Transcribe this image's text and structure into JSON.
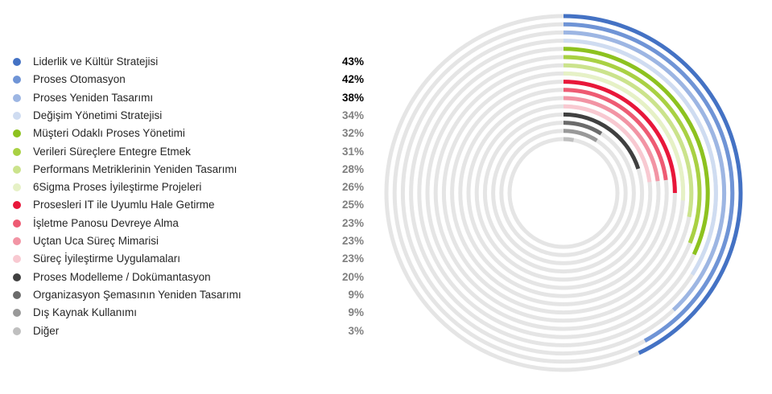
{
  "chart_data": {
    "type": "radial-bar",
    "max_value": 100,
    "track_color": "#e5e5e5",
    "series": [
      {
        "name": "Liderlik ve Kültür Stratejisi",
        "value": 43,
        "label": "43%",
        "color": "#4472c4",
        "label_color": "#000000"
      },
      {
        "name": "Proses Otomasyon",
        "value": 42,
        "label": "42%",
        "color": "#6f94d6",
        "label_color": "#000000"
      },
      {
        "name": "Proses Yeniden Tasarımı",
        "value": 38,
        "label": "38%",
        "color": "#9db6e3",
        "label_color": "#000000"
      },
      {
        "name": "Değişim Yönetimi Stratejisi",
        "value": 34,
        "label": "34%",
        "color": "#cfdcf1",
        "label_color": "#808080"
      },
      {
        "name": "Müşteri Odaklı Proses Yönetimi",
        "value": 32,
        "label": "32%",
        "color": "#8dc21f",
        "label_color": "#808080"
      },
      {
        "name": "Verileri Süreçlere Entegre Etmek",
        "value": 31,
        "label": "31%",
        "color": "#a9d143",
        "label_color": "#808080"
      },
      {
        "name": "Performans Metriklerinin Yeniden Tasarımı",
        "value": 28,
        "label": "28%",
        "color": "#cbe38c",
        "label_color": "#808080"
      },
      {
        "name": "6Sigma Proses İyileştirme Projeleri",
        "value": 26,
        "label": "26%",
        "color": "#e6f1c6",
        "label_color": "#808080"
      },
      {
        "name": "Prosesleri IT ile Uyumlu Hale Getirme",
        "value": 25,
        "label": "25%",
        "color": "#e8173a",
        "label_color": "#808080"
      },
      {
        "name": "İşletme Panosu Devreye Alma",
        "value": 23,
        "label": "23%",
        "color": "#ee5b73",
        "label_color": "#808080"
      },
      {
        "name": "Uçtan Uca Süreç Mimarisi",
        "value": 23,
        "label": "23%",
        "color": "#f294a4",
        "label_color": "#808080"
      },
      {
        "name": "Süreç İyileştirme Uygulamaları",
        "value": 23,
        "label": "23%",
        "color": "#f8c9d1",
        "label_color": "#808080"
      },
      {
        "name": "Proses Modelleme / Dokümantasyon",
        "value": 20,
        "label": "20%",
        "color": "#404040",
        "label_color": "#808080"
      },
      {
        "name": "Organizasyon Şemasının Yeniden Tasarımı",
        "value": 9,
        "label": "9%",
        "color": "#6b6b6b",
        "label_color": "#808080"
      },
      {
        "name": "Dış Kaynak Kullanımı",
        "value": 9,
        "label": "9%",
        "color": "#999999",
        "label_color": "#808080"
      },
      {
        "name": "Diğer",
        "value": 3,
        "label": "3%",
        "color": "#bfbfbf",
        "label_color": "#808080"
      }
    ]
  }
}
